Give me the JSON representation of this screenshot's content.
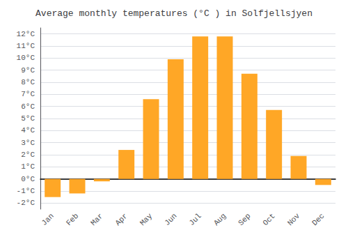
{
  "chart_data": {
    "type": "bar",
    "title": "Average monthly temperatures (°C ) in Solfjellsjyen",
    "categories": [
      "Jan",
      "Feb",
      "Mar",
      "Apr",
      "May",
      "Jun",
      "Jul",
      "Aug",
      "Sep",
      "Oct",
      "Nov",
      "Dec"
    ],
    "values": [
      -1.5,
      -1.2,
      -0.2,
      2.4,
      6.6,
      9.9,
      11.8,
      11.8,
      8.7,
      5.7,
      1.9,
      -0.5
    ],
    "color": "#FFA726",
    "ylim": [
      -2.5,
      12.5
    ],
    "yticks": [
      {
        "value": -2,
        "label": "-2°C"
      },
      {
        "value": -1,
        "label": "-1°C"
      },
      {
        "value": 0,
        "label": "0°C"
      },
      {
        "value": 1,
        "label": "1°C"
      },
      {
        "value": 2,
        "label": "2°C"
      },
      {
        "value": 3,
        "label": "3°C"
      },
      {
        "value": 4,
        "label": "4°C"
      },
      {
        "value": 5,
        "label": "5°C"
      },
      {
        "value": 6,
        "label": "6°C"
      },
      {
        "value": 7,
        "label": "7°C"
      },
      {
        "value": 8,
        "label": "8°C"
      },
      {
        "value": 9,
        "label": "9°C"
      },
      {
        "value": 10,
        "label": "10°C"
      },
      {
        "value": 11,
        "label": "11°C"
      },
      {
        "value": 12,
        "label": "12°C"
      }
    ],
    "grid": true
  }
}
